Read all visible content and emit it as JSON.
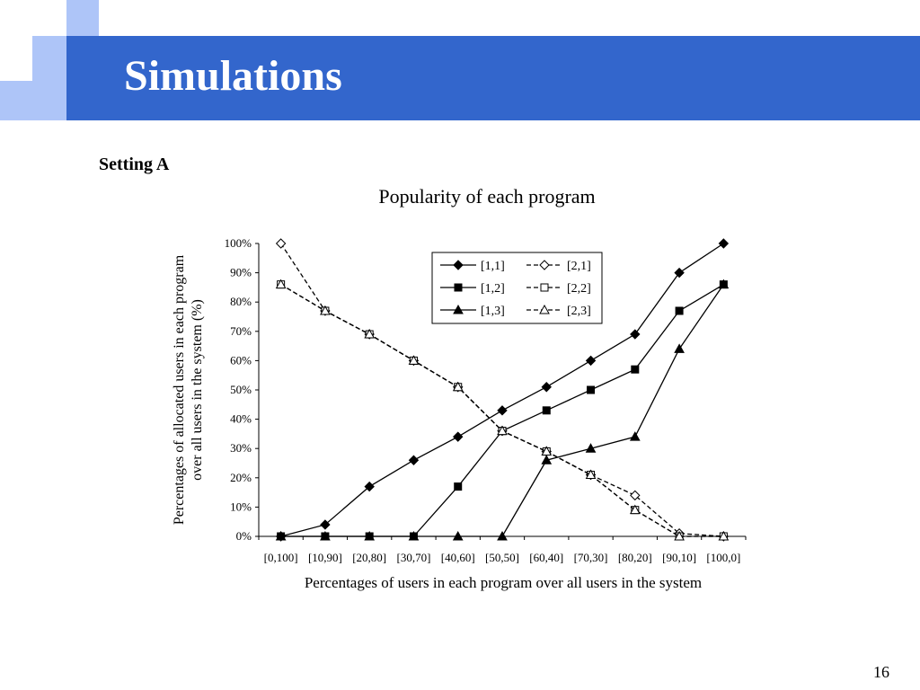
{
  "slide": {
    "title": "Simulations",
    "setting_label": "Setting A",
    "chart_caption": "Popularity of each program",
    "page_number": "16"
  },
  "colors": {
    "header_blue": "#3366cc",
    "deco_light": "#aec5f8",
    "deco_mid": "#6d97ee",
    "deco_dark": "#3366cc"
  },
  "chart_data": {
    "type": "line",
    "title": "",
    "xlabel": "Percentages of users in each program over all users in the system",
    "ylabel": "Percentages of allocated users in each program over all users in the system (%)",
    "ylim": [
      0,
      100
    ],
    "yticks": [
      "0%",
      "10%",
      "20%",
      "30%",
      "40%",
      "50%",
      "60%",
      "70%",
      "80%",
      "90%",
      "100%"
    ],
    "categories": [
      "[0,100]",
      "[10,90]",
      "[20,80]",
      "[30,70]",
      "[40,60]",
      "[50,50]",
      "[60,40]",
      "[70,30]",
      "[80,20]",
      "[90,10]",
      "[100,0]"
    ],
    "grid": false,
    "legend_position": "top-right",
    "series": [
      {
        "name": "[1,1]",
        "marker": "diamond",
        "filled": true,
        "dash": false,
        "values": [
          0,
          4,
          17,
          26,
          34,
          43,
          51,
          60,
          69,
          90,
          100
        ]
      },
      {
        "name": "[2,1]",
        "marker": "diamond",
        "filled": false,
        "dash": true,
        "values": [
          100,
          77,
          69,
          60,
          51,
          36,
          29,
          21,
          14,
          1,
          0
        ]
      },
      {
        "name": "[1,2]",
        "marker": "square",
        "filled": true,
        "dash": false,
        "values": [
          0,
          0,
          0,
          0,
          17,
          36,
          43,
          50,
          57,
          77,
          86
        ]
      },
      {
        "name": "[2,2]",
        "marker": "square",
        "filled": false,
        "dash": true,
        "values": [
          86,
          77,
          69,
          60,
          51,
          36,
          29,
          21,
          9,
          0,
          0
        ]
      },
      {
        "name": "[1,3]",
        "marker": "triangle",
        "filled": true,
        "dash": false,
        "values": [
          0,
          0,
          0,
          0,
          0,
          0,
          26,
          30,
          34,
          64,
          86
        ]
      },
      {
        "name": "[2,3]",
        "marker": "triangle",
        "filled": false,
        "dash": true,
        "values": [
          86,
          77,
          69,
          60,
          51,
          36,
          29,
          21,
          9,
          0,
          0
        ]
      }
    ]
  }
}
